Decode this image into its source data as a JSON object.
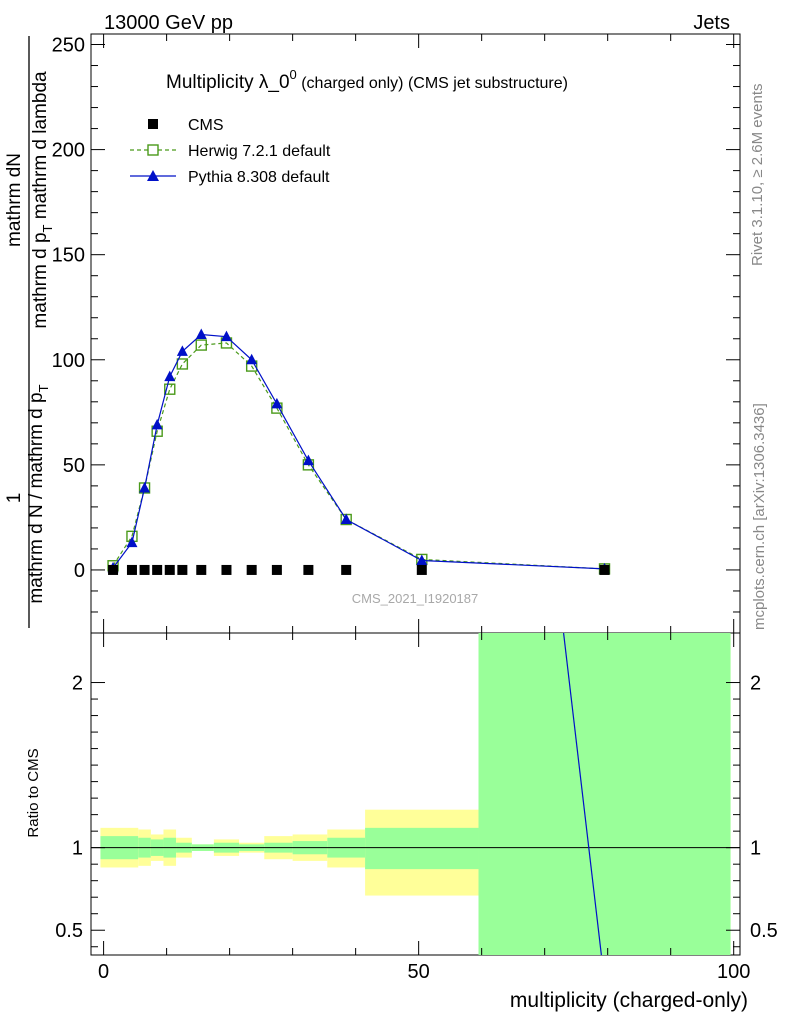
{
  "header": {
    "energy_label": "13000 GeV pp",
    "category_label": "Jets",
    "title_main": "Multiplicity λ_0",
    "title_sup": "0",
    "title_suffix": " (charged only) (CMS jet substructure)",
    "watermark": "CMS_2021_I1920187",
    "side_rivet": "Rivet 3.1.10, ≥ 2.6M events",
    "side_mcplots": "mcplots.cern.ch [arXiv:1306.3436]"
  },
  "axes": {
    "y_label_numerator": "mathrm dN",
    "y_label_den_prefix": "mathrm d p",
    "y_label_den_sub": "T",
    "y_label_den_suffix": " mathrm d lambda",
    "y_label_one": "1",
    "y_label_lower": "mathrm d N / mathrm d p",
    "y_label_lower_sub": "T",
    "ratio_ylabel": "Ratio to CMS",
    "xlabel": "multiplicity (charged-only)",
    "main_ylim": [
      -30,
      255
    ],
    "ratio_ylim": [
      0.35,
      2.3
    ],
    "xlim": [
      -2,
      101
    ],
    "main_yticks": [
      0,
      50,
      100,
      150,
      200,
      250
    ],
    "ratio_yticks": [
      0.5,
      1,
      2
    ],
    "ratio_ytick_labels": [
      "0.5",
      "1",
      "2"
    ],
    "xticks": [
      0,
      50,
      100
    ]
  },
  "chart_data": {
    "type": "line",
    "x": [
      1.5,
      4.5,
      6.5,
      8.5,
      10.5,
      12.5,
      15.5,
      19.5,
      23.5,
      27.5,
      32.5,
      38.5,
      50.5,
      79.5
    ],
    "series": [
      {
        "name": "CMS",
        "style": "data",
        "color": "#000000",
        "values": [
          0,
          0,
          0,
          0,
          0,
          0,
          0,
          0,
          0,
          0,
          0,
          0,
          0,
          0
        ]
      },
      {
        "name": "Herwig 7.2.1 default",
        "style": "open-square-dashed",
        "color": "#4a9a1a",
        "values": [
          2,
          16,
          39,
          66,
          86,
          98,
          107,
          108,
          97,
          77,
          50,
          24,
          5,
          0.5
        ]
      },
      {
        "name": "Pythia 8.308 default",
        "style": "triangle-solid",
        "color": "#0010c8",
        "values": [
          1,
          13,
          39,
          69,
          92,
          104,
          112,
          111,
          100,
          79,
          52,
          24,
          4.5,
          0.5
        ]
      }
    ],
    "ratio_bands": [
      {
        "x0": -0.5,
        "x1": 3,
        "inner": [
          0.93,
          1.07
        ],
        "outer": [
          0.88,
          1.12
        ]
      },
      {
        "x0": 3,
        "x1": 5.5,
        "inner": [
          0.93,
          1.07
        ],
        "outer": [
          0.88,
          1.12
        ]
      },
      {
        "x0": 5.5,
        "x1": 7.5,
        "inner": [
          0.94,
          1.06
        ],
        "outer": [
          0.89,
          1.11
        ]
      },
      {
        "x0": 7.5,
        "x1": 9.5,
        "inner": [
          0.95,
          1.05
        ],
        "outer": [
          0.92,
          1.08
        ]
      },
      {
        "x0": 9.5,
        "x1": 11.5,
        "inner": [
          0.94,
          1.06
        ],
        "outer": [
          0.89,
          1.11
        ]
      },
      {
        "x0": 11.5,
        "x1": 14,
        "inner": [
          0.97,
          1.03
        ],
        "outer": [
          0.94,
          1.06
        ]
      },
      {
        "x0": 14,
        "x1": 17.5,
        "inner": [
          0.98,
          1.02
        ],
        "outer": [
          0.98,
          1.02
        ]
      },
      {
        "x0": 17.5,
        "x1": 21.5,
        "inner": [
          0.97,
          1.03
        ],
        "outer": [
          0.95,
          1.05
        ]
      },
      {
        "x0": 21.5,
        "x1": 25.5,
        "inner": [
          0.98,
          1.02
        ],
        "outer": [
          0.97,
          1.03
        ]
      },
      {
        "x0": 25.5,
        "x1": 30,
        "inner": [
          0.97,
          1.03
        ],
        "outer": [
          0.93,
          1.07
        ]
      },
      {
        "x0": 30,
        "x1": 35.5,
        "inner": [
          0.96,
          1.04
        ],
        "outer": [
          0.92,
          1.08
        ]
      },
      {
        "x0": 35.5,
        "x1": 41.5,
        "inner": [
          0.94,
          1.06
        ],
        "outer": [
          0.88,
          1.11
        ]
      },
      {
        "x0": 41.5,
        "x1": 59.5,
        "inner": [
          0.87,
          1.12
        ],
        "outer": [
          0.71,
          1.23
        ]
      },
      {
        "x0": 59.5,
        "x1": 99.5,
        "inner": [
          0.35,
          2.3
        ],
        "outer": [
          0.35,
          2.3
        ]
      }
    ],
    "ratio_line": {
      "name": "Pythia 8.308 default",
      "x": [
        73,
        79
      ],
      "y": [
        2.3,
        0.35
      ],
      "color": "#0010c8"
    },
    "legend": "top-left",
    "grid": false
  }
}
